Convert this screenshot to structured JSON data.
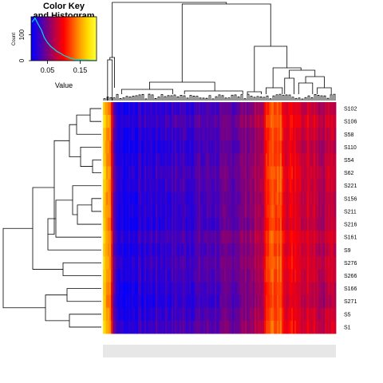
{
  "chart_data": {
    "type": "heatmap",
    "color_key": {
      "title_line1": "Color Key",
      "title_line2": "and Histogram",
      "xlabel": "Value",
      "ylabel": "Count",
      "x_ticks": [
        "0.05",
        "0.15"
      ],
      "x_tick_values": [
        0.05,
        0.15
      ],
      "y_ticks": [
        "0",
        "100"
      ],
      "y_tick_values": [
        0,
        100
      ],
      "value_range": [
        0.0,
        0.2
      ],
      "count_range": [
        0,
        170
      ],
      "palette": [
        "#0000ff",
        "#3a00c5",
        "#7a0080",
        "#c00040",
        "#ff0000",
        "#ff5000",
        "#ffa000",
        "#ffe000",
        "#ffff40"
      ],
      "histogram_color": "#00e0e0",
      "histogram": {
        "x": [
          0.003,
          0.012,
          0.022,
          0.031,
          0.04,
          0.05,
          0.06,
          0.07,
          0.08,
          0.09,
          0.1,
          0.11,
          0.12,
          0.13,
          0.14,
          0.15,
          0.16,
          0.17,
          0.18,
          0.19,
          0.2
        ],
        "y": [
          150,
          165,
          140,
          120,
          90,
          70,
          55,
          45,
          35,
          28,
          20,
          15,
          10,
          6,
          4,
          3,
          2,
          2,
          1,
          1,
          0
        ]
      }
    },
    "rows": [
      "S102",
      "S106",
      "S58",
      "S110",
      "S54",
      "S62",
      "S221",
      "S156",
      "S211",
      "S216",
      "S161",
      "S9",
      "S276",
      "S266",
      "S166",
      "S271",
      "S5",
      "S1"
    ],
    "column_profile": {
      "x": [
        0.0,
        0.01,
        0.03,
        0.05,
        0.06,
        0.08,
        0.12,
        0.2,
        0.3,
        0.4,
        0.5,
        0.55,
        0.6,
        0.64,
        0.68,
        0.7,
        0.72,
        0.74,
        0.76,
        0.78,
        0.8,
        0.83,
        0.86,
        0.9,
        0.94,
        0.97,
        1.0
      ],
      "value": [
        0.18,
        0.16,
        0.15,
        0.03,
        0.02,
        0.01,
        0.015,
        0.02,
        0.025,
        0.03,
        0.035,
        0.04,
        0.05,
        0.06,
        0.065,
        0.1,
        0.14,
        0.11,
        0.13,
        0.1,
        0.09,
        0.1,
        0.08,
        0.09,
        0.07,
        0.08,
        0.07
      ]
    }
  }
}
